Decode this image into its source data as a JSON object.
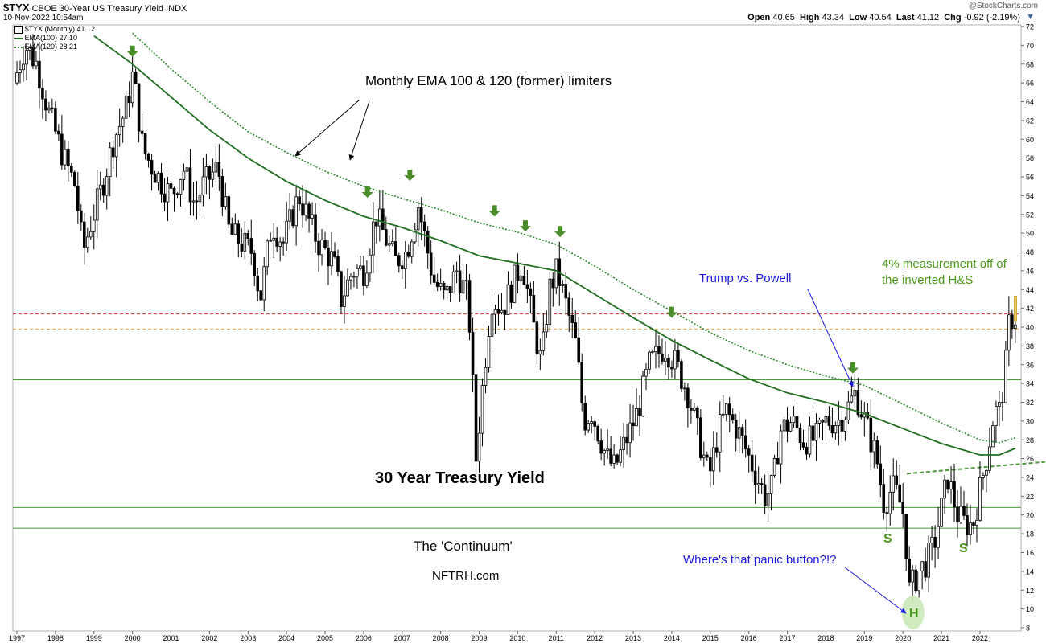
{
  "header": {
    "symbol": "$TYX",
    "name": "CBOE 30-Year US Treasury Yield",
    "exchange": "INDX",
    "timestamp": "10-Nov-2022 10:54am",
    "watermark": "@StockCharts.com",
    "quote": {
      "open_label": "Open",
      "open": "40.65",
      "high_label": "High",
      "high": "43.34",
      "low_label": "Low",
      "low": "40.54",
      "last_label": "Last",
      "last": "41.12",
      "chg_label": "Chg",
      "chg": "-0.92 (-2.19%)"
    }
  },
  "legend": {
    "main": "$TYX (Monthly) 41.12",
    "ema100": "EMA(100) 27.10",
    "ema120": "EMA(120) 28.21"
  },
  "colors": {
    "candle": "#000000",
    "ema100": "#1f6e1f",
    "ema120": "#2a8a2a",
    "arrow_green": "#4a8c2a",
    "label_green": "#4a9a1a",
    "blue": "#1a1adc",
    "red_line": "#d23232",
    "orange_line": "#e0a030",
    "support_line": "#4a9a3a",
    "head_circle": "#c8e8b4"
  },
  "annotations": {
    "ema_note": "Monthly EMA 100 & 120 (former) limiters",
    "chart_title": "30 Year Treasury Yield",
    "continuum": "The 'Continuum'",
    "site": "NFTRH.com",
    "trump": "Trump vs. Powell",
    "measure_line1": "4% measurement off of",
    "measure_line2": "the inverted H&S",
    "panic": "Where's that panic button?!?",
    "s_left": "S",
    "s_right": "S",
    "head": "H"
  },
  "chart_data": {
    "type": "candlestick",
    "title": "30 Year Treasury Yield",
    "ylim": [
      8,
      72
    ],
    "y_ticks": [
      8,
      10,
      12,
      14,
      16,
      18,
      20,
      22,
      24,
      26,
      28,
      30,
      32,
      34,
      36,
      38,
      40,
      42,
      44,
      46,
      48,
      50,
      52,
      54,
      56,
      58,
      60,
      62,
      64,
      66,
      68,
      70,
      72
    ],
    "x_range": [
      1997.0,
      2022.92
    ],
    "x_ticks": [
      "1997",
      "1998",
      "1999",
      "2000",
      "2001",
      "2002",
      "2003",
      "2004",
      "2005",
      "2006",
      "2007",
      "2008",
      "2009",
      "2010",
      "2011",
      "2012",
      "2013",
      "2014",
      "2015",
      "2016",
      "2017",
      "2018",
      "2019",
      "2020",
      "2021",
      "2022"
    ],
    "horizontal_lines": [
      {
        "value": 41.4,
        "style": "dashed",
        "color": "#d23232"
      },
      {
        "value": 39.8,
        "style": "dashed",
        "color": "#e0a030"
      },
      {
        "value": 34.4,
        "style": "solid",
        "color": "#4a9a3a"
      },
      {
        "value": 20.8,
        "style": "solid",
        "color": "#4a9a3a"
      },
      {
        "value": 18.6,
        "style": "solid",
        "color": "#4a9a3a"
      }
    ],
    "neckline": {
      "from": [
        2020.1,
        24.4
      ],
      "to": [
        2022.92,
        25.4
      ]
    },
    "yield_anchors": [
      [
        1997.0,
        66
      ],
      [
        1997.3,
        70
      ],
      [
        1997.6,
        68
      ],
      [
        1997.9,
        63
      ],
      [
        1998.3,
        58
      ],
      [
        1998.6,
        55
      ],
      [
        1998.8,
        48
      ],
      [
        1999.0,
        51
      ],
      [
        1999.3,
        55
      ],
      [
        1999.6,
        60
      ],
      [
        1999.9,
        63
      ],
      [
        2000.1,
        67
      ],
      [
        2000.35,
        59
      ],
      [
        2000.6,
        57
      ],
      [
        2000.9,
        55
      ],
      [
        2001.1,
        54
      ],
      [
        2001.4,
        57
      ],
      [
        2001.7,
        53
      ],
      [
        2001.9,
        55
      ],
      [
        2002.3,
        57
      ],
      [
        2002.6,
        50
      ],
      [
        2002.9,
        49
      ],
      [
        2003.2,
        48
      ],
      [
        2003.4,
        43
      ],
      [
        2003.7,
        51
      ],
      [
        2004.0,
        49
      ],
      [
        2004.4,
        54
      ],
      [
        2004.7,
        51
      ],
      [
        2004.9,
        49
      ],
      [
        2005.3,
        47
      ],
      [
        2005.5,
        43
      ],
      [
        2005.8,
        46
      ],
      [
        2006.1,
        46
      ],
      [
        2006.4,
        52
      ],
      [
        2006.7,
        49
      ],
      [
        2006.9,
        47
      ],
      [
        2007.2,
        48
      ],
      [
        2007.5,
        53
      ],
      [
        2007.7,
        49
      ],
      [
        2007.9,
        45
      ],
      [
        2008.2,
        43
      ],
      [
        2008.5,
        46
      ],
      [
        2008.8,
        43
      ],
      [
        2008.95,
        31
      ],
      [
        2009.0,
        26
      ],
      [
        2009.2,
        35
      ],
      [
        2009.4,
        43
      ],
      [
        2009.7,
        42
      ],
      [
        2009.9,
        44
      ],
      [
        2010.2,
        47
      ],
      [
        2010.5,
        40
      ],
      [
        2010.7,
        36
      ],
      [
        2010.9,
        44
      ],
      [
        2011.1,
        46
      ],
      [
        2011.3,
        43
      ],
      [
        2011.6,
        38
      ],
      [
        2011.8,
        30
      ],
      [
        2012.0,
        31
      ],
      [
        2012.4,
        26
      ],
      [
        2012.6,
        25
      ],
      [
        2012.9,
        28
      ],
      [
        2013.2,
        31
      ],
      [
        2013.5,
        36
      ],
      [
        2013.9,
        38
      ],
      [
        2014.2,
        36
      ],
      [
        2014.5,
        33
      ],
      [
        2014.8,
        28
      ],
      [
        2015.05,
        24
      ],
      [
        2015.3,
        29
      ],
      [
        2015.5,
        31
      ],
      [
        2015.8,
        29
      ],
      [
        2016.1,
        26
      ],
      [
        2016.5,
        22
      ],
      [
        2016.7,
        23
      ],
      [
        2016.9,
        29
      ],
      [
        2017.2,
        30
      ],
      [
        2017.5,
        28
      ],
      [
        2017.8,
        28
      ],
      [
        2018.1,
        30
      ],
      [
        2018.4,
        30
      ],
      [
        2018.6,
        31
      ],
      [
        2018.85,
        33
      ],
      [
        2019.1,
        30
      ],
      [
        2019.4,
        26
      ],
      [
        2019.6,
        21
      ],
      [
        2019.8,
        23
      ],
      [
        2019.95,
        22
      ],
      [
        2020.1,
        20
      ],
      [
        2020.2,
        15
      ],
      [
        2020.25,
        12
      ],
      [
        2020.5,
        14
      ],
      [
        2020.7,
        15
      ],
      [
        2020.9,
        17
      ],
      [
        2021.1,
        21
      ],
      [
        2021.25,
        24
      ],
      [
        2021.5,
        20
      ],
      [
        2021.7,
        19
      ],
      [
        2021.9,
        19
      ],
      [
        2022.0,
        21
      ],
      [
        2022.25,
        26
      ],
      [
        2022.45,
        31
      ],
      [
        2022.6,
        31
      ],
      [
        2022.75,
        36
      ],
      [
        2022.85,
        41
      ],
      [
        2022.92,
        41
      ]
    ],
    "ema100_points": [
      [
        1999.0,
        71
      ],
      [
        1999.5,
        69.5
      ],
      [
        2000.0,
        68
      ],
      [
        2001.0,
        64.5
      ],
      [
        2002.0,
        61
      ],
      [
        2003.0,
        58
      ],
      [
        2004.0,
        55.5
      ],
      [
        2005.0,
        53.5
      ],
      [
        2006.0,
        51.8
      ],
      [
        2007.0,
        50.6
      ],
      [
        2008.0,
        49.2
      ],
      [
        2009.0,
        47.6
      ],
      [
        2010.0,
        46.8
      ],
      [
        2011.0,
        46
      ],
      [
        2012.0,
        43.5
      ],
      [
        2013.0,
        41
      ],
      [
        2014.0,
        38.6
      ],
      [
        2015.0,
        36.5
      ],
      [
        2016.0,
        34.5
      ],
      [
        2017.0,
        33
      ],
      [
        2018.0,
        32
      ],
      [
        2019.0,
        30.8
      ],
      [
        2020.0,
        29.2
      ],
      [
        2021.0,
        27.6
      ],
      [
        2022.0,
        26.4
      ],
      [
        2022.5,
        26.4
      ],
      [
        2022.92,
        27.1
      ]
    ],
    "ema120_points": [
      [
        2000.0,
        71.3
      ],
      [
        2001.0,
        67.5
      ],
      [
        2002.0,
        64
      ],
      [
        2003.0,
        60.8
      ],
      [
        2004.0,
        58.6
      ],
      [
        2005.0,
        56.6
      ],
      [
        2006.0,
        55
      ],
      [
        2007.0,
        53.7
      ],
      [
        2008.0,
        52.5
      ],
      [
        2009.0,
        51.1
      ],
      [
        2010.0,
        50.1
      ],
      [
        2011.0,
        48.8
      ],
      [
        2012.0,
        46.5
      ],
      [
        2013.0,
        44
      ],
      [
        2014.0,
        41.7
      ],
      [
        2015.0,
        39.4
      ],
      [
        2016.0,
        37.5
      ],
      [
        2017.0,
        36
      ],
      [
        2018.0,
        34.8
      ],
      [
        2019.0,
        33.8
      ],
      [
        2020.0,
        31.8
      ],
      [
        2021.0,
        29.8
      ],
      [
        2022.0,
        28
      ],
      [
        2022.5,
        27.7
      ],
      [
        2022.92,
        28.21
      ]
    ],
    "resistance_touches": [
      [
        2000.0,
        68.6
      ],
      [
        2006.1,
        53.6
      ],
      [
        2007.2,
        55.4
      ],
      [
        2009.4,
        51.6
      ],
      [
        2010.2,
        50
      ],
      [
        2011.1,
        49.4
      ],
      [
        2014.0,
        40.8
      ],
      [
        2018.7,
        34.9
      ]
    ],
    "s_points": [
      [
        2019.7,
        17
      ],
      [
        2021.8,
        15.8
      ]
    ],
    "h_point": [
      2020.2,
      9.8
    ]
  }
}
